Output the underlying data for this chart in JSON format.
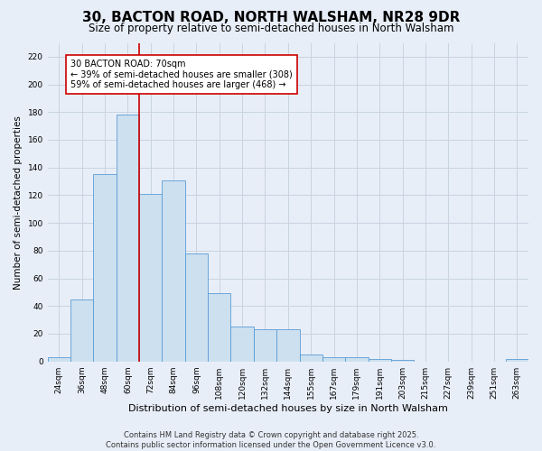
{
  "title": "30, BACTON ROAD, NORTH WALSHAM, NR28 9DR",
  "subtitle": "Size of property relative to semi-detached houses in North Walsham",
  "xlabel": "Distribution of semi-detached houses by size in North Walsham",
  "ylabel": "Number of semi-detached properties",
  "bins": [
    "24sqm",
    "36sqm",
    "48sqm",
    "60sqm",
    "72sqm",
    "84sqm",
    "96sqm",
    "108sqm",
    "120sqm",
    "132sqm",
    "144sqm",
    "155sqm",
    "167sqm",
    "179sqm",
    "191sqm",
    "203sqm",
    "215sqm",
    "227sqm",
    "239sqm",
    "251sqm",
    "263sqm"
  ],
  "values": [
    3,
    45,
    135,
    178,
    121,
    131,
    78,
    49,
    25,
    23,
    23,
    5,
    3,
    3,
    2,
    1,
    0,
    0,
    0,
    0,
    2
  ],
  "bar_color": "#cce0f0",
  "bar_edge_color": "#5b9bd5",
  "grid_color": "#c8d4e0",
  "background_color": "#e8eef8",
  "vline_color": "#cc0000",
  "annotation_text": "30 BACTON ROAD: 70sqm\n← 39% of semi-detached houses are smaller (308)\n59% of semi-detached houses are larger (468) →",
  "annotation_box_color": "#ffffff",
  "annotation_box_edge_color": "#cc0000",
  "ylim": [
    0,
    230
  ],
  "yticks": [
    0,
    20,
    40,
    60,
    80,
    100,
    120,
    140,
    160,
    180,
    200,
    220
  ],
  "footnote": "Contains HM Land Registry data © Crown copyright and database right 2025.\nContains public sector information licensed under the Open Government Licence v3.0.",
  "title_fontsize": 11,
  "subtitle_fontsize": 8.5,
  "xlabel_fontsize": 8,
  "ylabel_fontsize": 7.5,
  "tick_fontsize": 6.5,
  "annotation_fontsize": 7,
  "footnote_fontsize": 6
}
